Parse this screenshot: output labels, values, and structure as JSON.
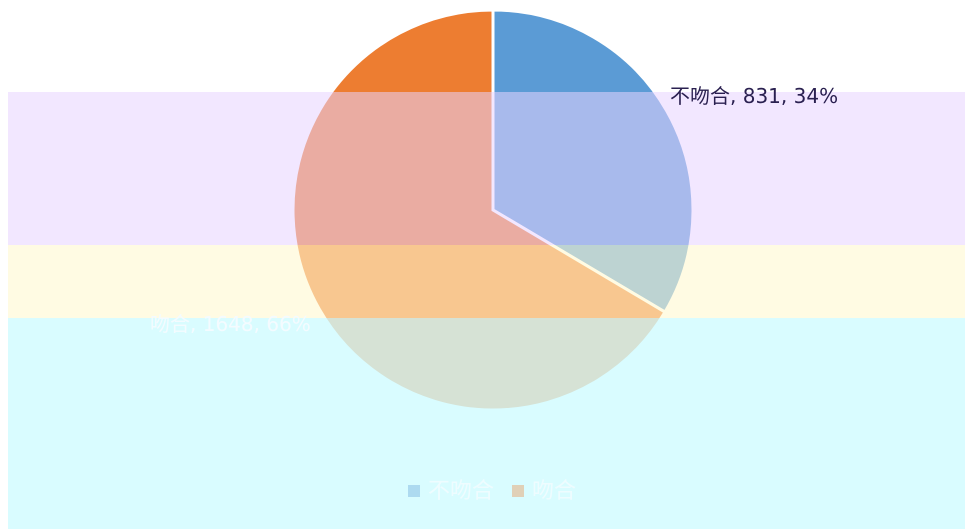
{
  "chart_data": {
    "type": "pie",
    "categories": [
      "不吻合",
      "吻合"
    ],
    "values": [
      831,
      1648
    ],
    "value_labels": [
      "34%",
      "66%"
    ],
    "colors": [
      "#5b9bd5",
      "#ed7d31"
    ],
    "legend": "bottom"
  }
}
